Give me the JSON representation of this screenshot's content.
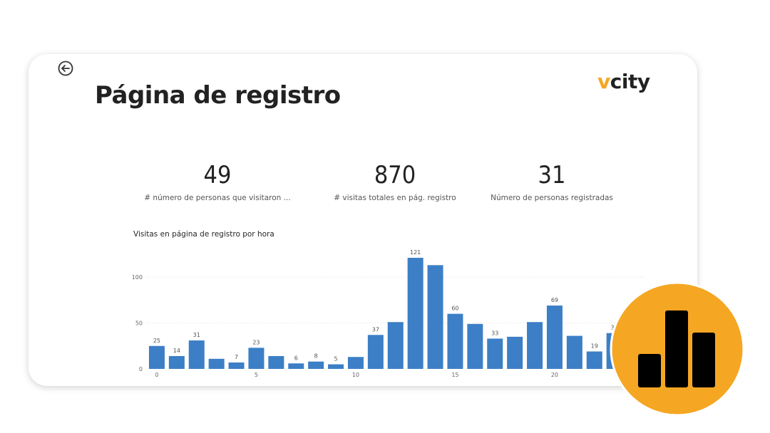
{
  "header": {
    "title": "Página de registro",
    "logo": {
      "prefix": "v",
      "rest": "city",
      "accent": "#f5a623"
    }
  },
  "kpis": [
    {
      "value": "49",
      "label": "# número de personas que visitaron ..."
    },
    {
      "value": "870",
      "label": "# visitas totales en pág. registro"
    },
    {
      "value": "31",
      "label": "Número de personas registradas"
    }
  ],
  "icons": {
    "back": "back-arrow-icon",
    "badge": "bar-chart-icon"
  },
  "colors": {
    "bar": "#3c7fc6",
    "badge": "#f5a623",
    "text": "#222222"
  },
  "chart_data": {
    "type": "bar",
    "title": "Visitas en página de registro por hora",
    "xlabel": "",
    "ylabel": "",
    "x": [
      0,
      1,
      2,
      3,
      4,
      5,
      6,
      7,
      8,
      9,
      10,
      11,
      12,
      13,
      14,
      15,
      16,
      17,
      18,
      19,
      20,
      21,
      22,
      23
    ],
    "values": [
      25,
      14,
      31,
      11,
      7,
      23,
      14,
      6,
      8,
      5,
      13,
      37,
      51,
      121,
      113,
      60,
      49,
      33,
      35,
      51,
      69,
      36,
      19,
      39
    ],
    "data_labels": {
      "0": "25",
      "1": "14",
      "2": "31",
      "4": "7",
      "5": "23",
      "7": "6",
      "8": "8",
      "9": "5",
      "11": "37",
      "13": "121",
      "15": "60",
      "17": "33",
      "20": "69",
      "22": "19",
      "23": "39"
    },
    "xticks": [
      0,
      5,
      10,
      15,
      20
    ],
    "yticks": [
      0,
      50,
      100
    ],
    "ylim": [
      0,
      121
    ],
    "grid": true,
    "gridlines": [
      50,
      100
    ]
  }
}
